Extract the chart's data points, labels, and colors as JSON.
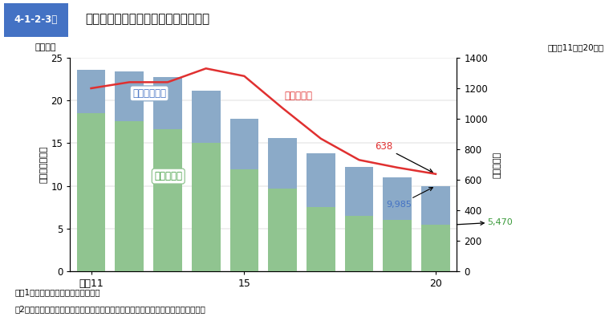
{
  "years": [
    11,
    12,
    13,
    14,
    15,
    16,
    17,
    18,
    19,
    20
  ],
  "members": [
    23.6,
    23.4,
    22.7,
    21.1,
    17.9,
    15.6,
    13.8,
    12.2,
    11.0,
    9.985
  ],
  "youth": [
    18.5,
    17.6,
    16.6,
    15.0,
    11.9,
    9.7,
    7.5,
    6.5,
    6.0,
    5.47
  ],
  "groups": [
    1200,
    1240,
    1240,
    1330,
    1280,
    1070,
    870,
    730,
    680,
    638
  ],
  "bar_color_blue": "#8BAAC8",
  "bar_color_green": "#90C490",
  "line_color": "#E03030",
  "blue_text": "#4472C4",
  "green_text": "#3A9A3A",
  "title_box_label": "4-1-2-3図",
  "title_main": "暴走族の構成員数・グループ数の推移",
  "ylabel_left": "暴走族構成員数",
  "ylabel_right": "グループ数",
  "ylabel_left_unit": "（千人）",
  "ylabel_right_unit": "（平成11年～20年）",
  "xtick_labels": [
    "平成11",
    "15",
    "20"
  ],
  "xtick_positions": [
    0,
    4,
    9
  ],
  "label_members": "暴走族構成員",
  "label_youth": "うち少年数",
  "label_groups": "グループ数",
  "ann_638": "638",
  "ann_9985": "9,985",
  "ann_5470": "5,470",
  "note1": "注　1　警察庁交通局の資料による。",
  "note2": "　2　共同危険型暴走族（爆音を伴う暴走等を集団で行う暴走族をいう。）に限る。",
  "ylim_left": [
    0,
    25
  ],
  "ylim_right": [
    0,
    1400
  ],
  "header_blue": "#4472C4",
  "header_gray": "#E0E0E0"
}
